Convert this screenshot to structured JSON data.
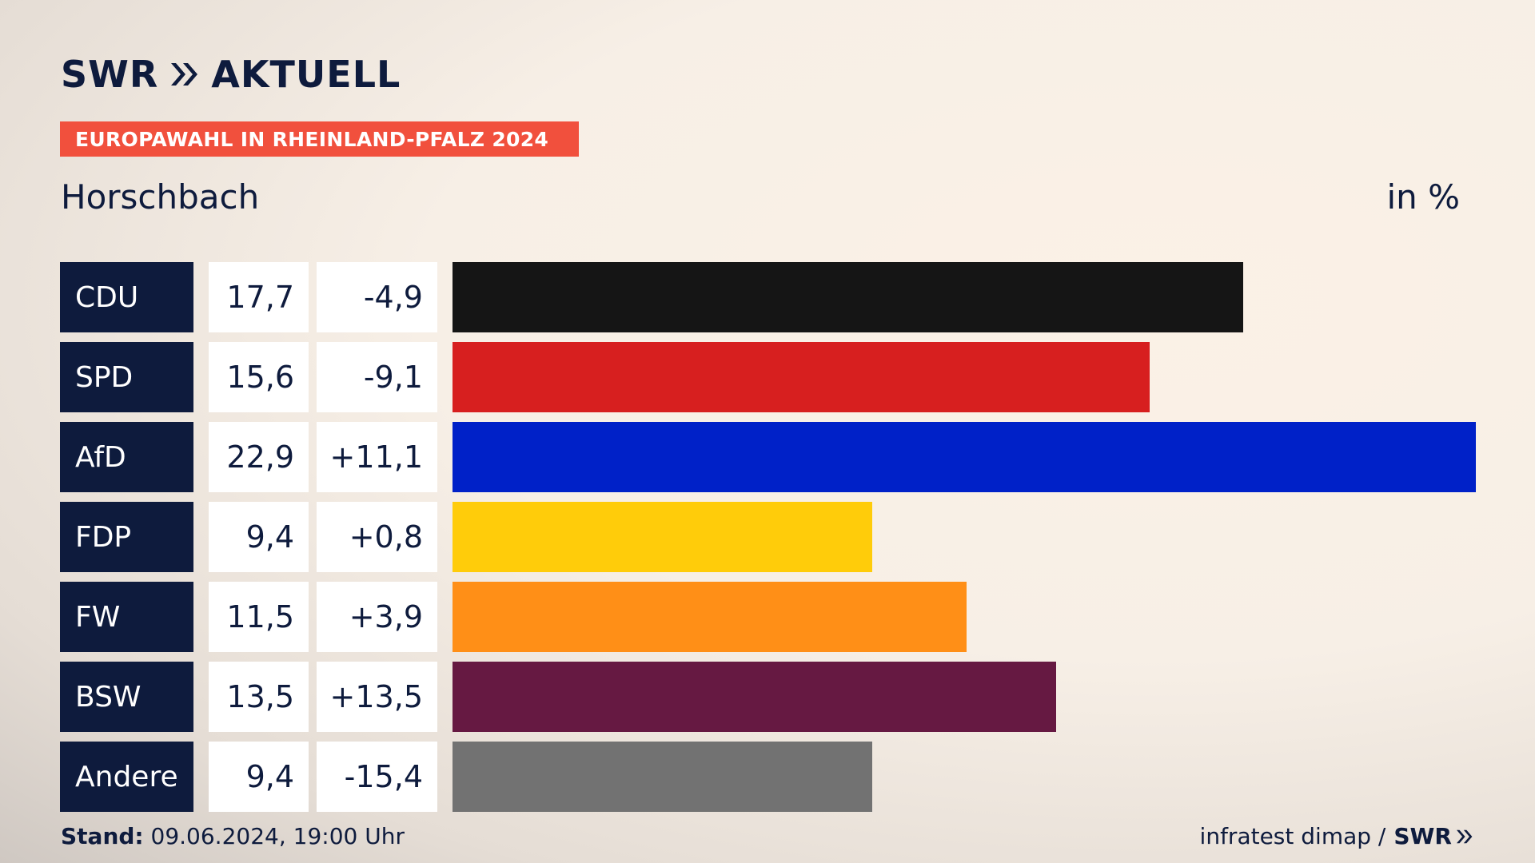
{
  "header": {
    "brand_name": "SWR",
    "brand_suffix": "AKTUELL",
    "banner": "EUROPAWAHL IN RHEINLAND-PFALZ 2024",
    "location": "Horschbach",
    "unit": "in %"
  },
  "footer": {
    "stand_label": "Stand:",
    "stand_value": " 09.06.2024, 19:00 Uhr",
    "source": "infratest dimap /",
    "source_brand": "SWR"
  },
  "colors": {
    "navy": "#0e1b3d",
    "banner": "#f1503d"
  },
  "chart_data": {
    "type": "bar",
    "orientation": "horizontal",
    "categories": [
      "CDU",
      "SPD",
      "AfD",
      "FDP",
      "FW",
      "BSW",
      "Andere"
    ],
    "values": [
      17.7,
      15.6,
      22.9,
      9.4,
      11.5,
      13.5,
      9.4
    ],
    "value_labels": [
      "17,7",
      "15,6",
      "22,9",
      "9,4",
      "11,5",
      "13,5",
      "9,4"
    ],
    "diff_labels": [
      "-4,9",
      "-9,1",
      "+11,1",
      "+0,8",
      "+3,9",
      "+13,5",
      "-15,4"
    ],
    "diffs": [
      -4.9,
      -9.1,
      11.1,
      0.8,
      3.9,
      13.5,
      -15.4
    ],
    "colors": [
      "#151515",
      "#d71f1f",
      "#0021c8",
      "#ffcc0a",
      "#ff8f17",
      "#661942",
      "#727272"
    ],
    "unit": "in %",
    "xlim": [
      0,
      22.9
    ]
  }
}
